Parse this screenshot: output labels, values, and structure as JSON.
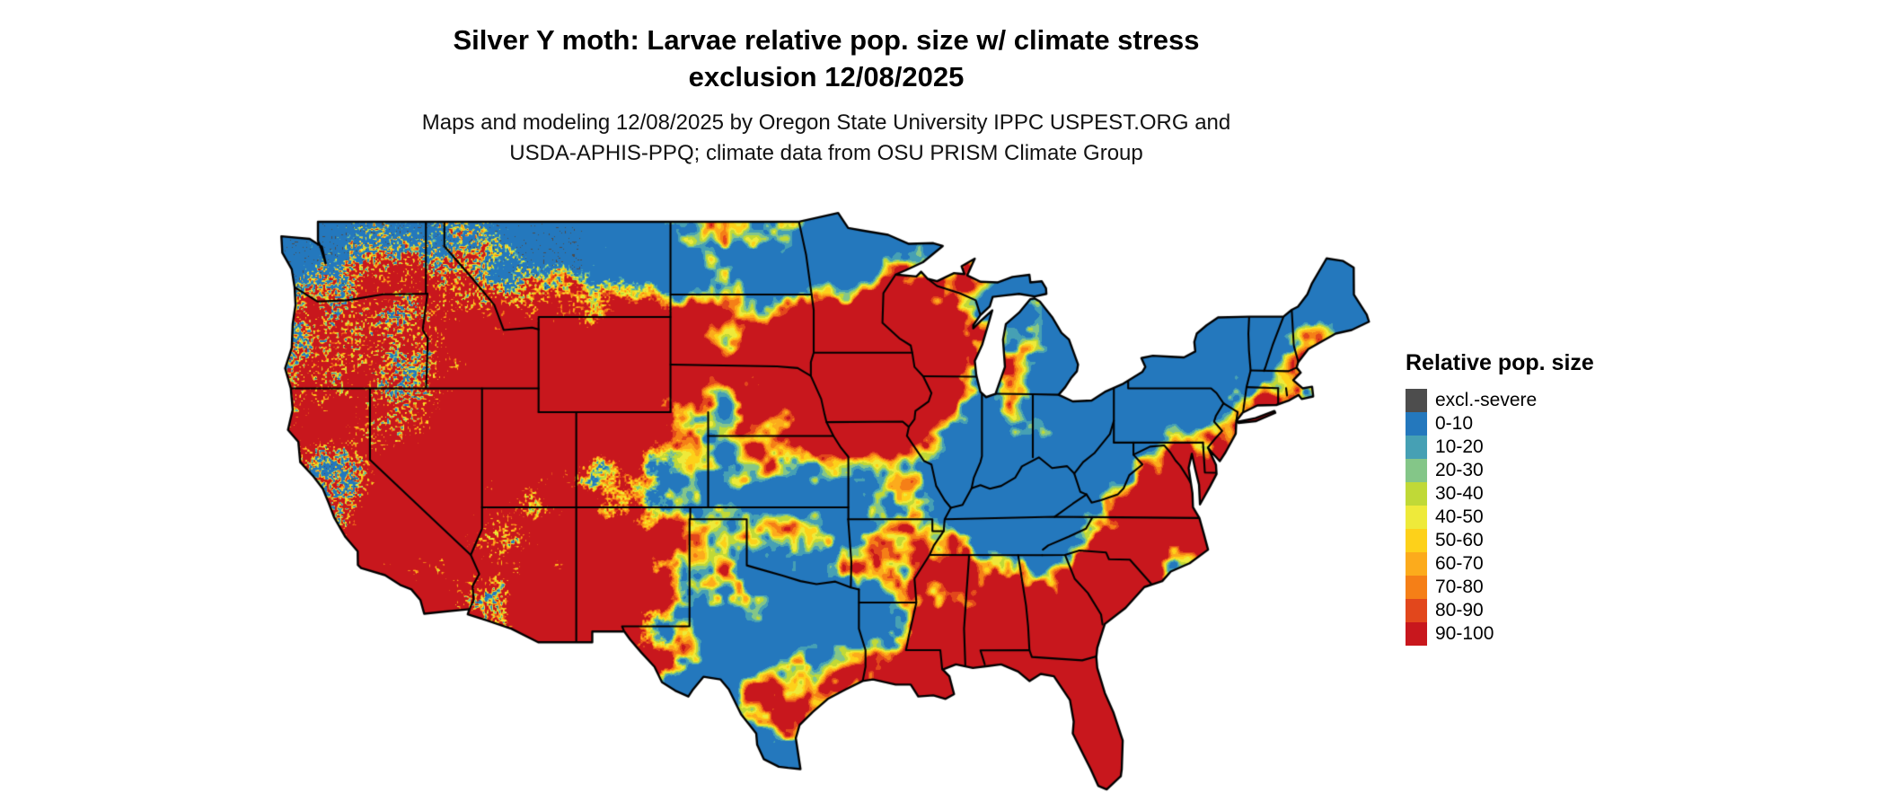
{
  "header": {
    "title": "Silver Y moth: Larvae relative pop. size w/ climate stress\nexclusion 12/08/2025",
    "subtitle": "Maps and modeling 12/08/2025 by Oregon State University IPPC USPEST.ORG and\nUSDA-APHIS-PPQ; climate data from OSU PRISM Climate Group"
  },
  "legend": {
    "title": "Relative pop. size",
    "items": [
      {
        "label": "excl.-severe",
        "color": "#4d4d4d"
      },
      {
        "label": "0-10",
        "color": "#2478bd"
      },
      {
        "label": "10-20",
        "color": "#46a0b4"
      },
      {
        "label": "20-30",
        "color": "#84c688"
      },
      {
        "label": "30-40",
        "color": "#c0d937"
      },
      {
        "label": "40-50",
        "color": "#eeea3a"
      },
      {
        "label": "50-60",
        "color": "#fdd11a"
      },
      {
        "label": "60-70",
        "color": "#fcab1c"
      },
      {
        "label": "70-80",
        "color": "#f57f17"
      },
      {
        "label": "80-90",
        "color": "#e2471c"
      },
      {
        "label": "90-100",
        "color": "#c8171d"
      }
    ]
  }
}
